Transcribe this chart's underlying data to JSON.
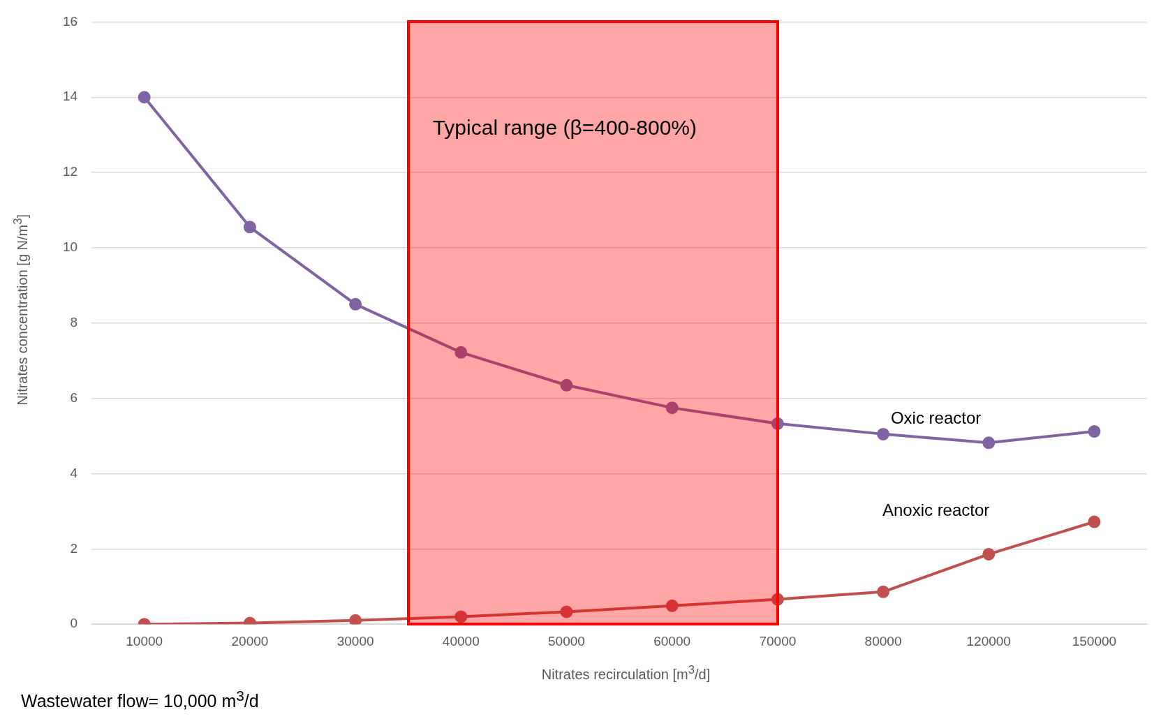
{
  "chart_data": {
    "type": "line",
    "xlabel": "Nitrates recirculation [m$^{3}$/d]",
    "ylabel": "Nitrates concentration [g N/m$^{3}$]",
    "categories": [
      "10000",
      "20000",
      "30000",
      "40000",
      "50000",
      "60000",
      "70000",
      "80000",
      "120000",
      "150000"
    ],
    "series": [
      {
        "name": "Oxic reactor",
        "color": "#8064a2",
        "values": [
          14,
          10.55,
          8.5,
          7.22,
          6.35,
          5.75,
          5.33,
          5.05,
          4.82,
          5.12
        ]
      },
      {
        "name": "Anoxic reactor",
        "color": "#c0504d",
        "values": [
          0,
          0.03,
          0.1,
          0.2,
          0.33,
          0.49,
          0.66,
          0.86,
          1.86,
          2.72
        ]
      }
    ],
    "ylim": [
      0,
      16
    ],
    "yticks": [
      0,
      2,
      4,
      6,
      8,
      10,
      12,
      14,
      16
    ],
    "grid": "y",
    "legend": false,
    "marker": "circle",
    "line_style": "solid",
    "annotations": [
      "Typical range (β=400-800%)",
      "Wastewater flow= 10,000 m$^{3}$/d"
    ]
  }
}
